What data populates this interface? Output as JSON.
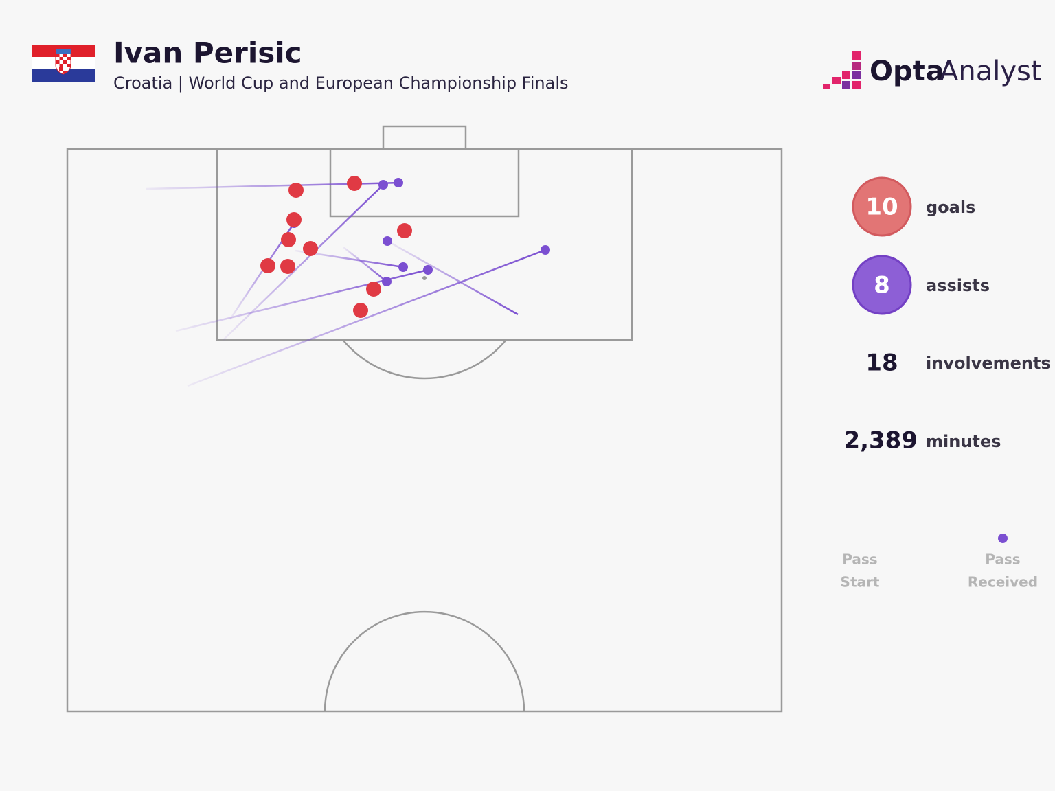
{
  "header": {
    "title": "Ivan Perisic",
    "subtitle": "Croatia | World Cup and European Championship Finals"
  },
  "logo": {
    "brand": "Opta",
    "product": "Analyst"
  },
  "stats": [
    {
      "value": "10",
      "label": "goals"
    },
    {
      "value": "8",
      "label": "assists"
    },
    {
      "value": "18",
      "label": "involvements"
    },
    {
      "value": "2,389",
      "label": "minutes"
    }
  ],
  "legend": {
    "start": [
      "Pass",
      "Start"
    ],
    "end": [
      "Pass",
      "Received"
    ]
  }
}
